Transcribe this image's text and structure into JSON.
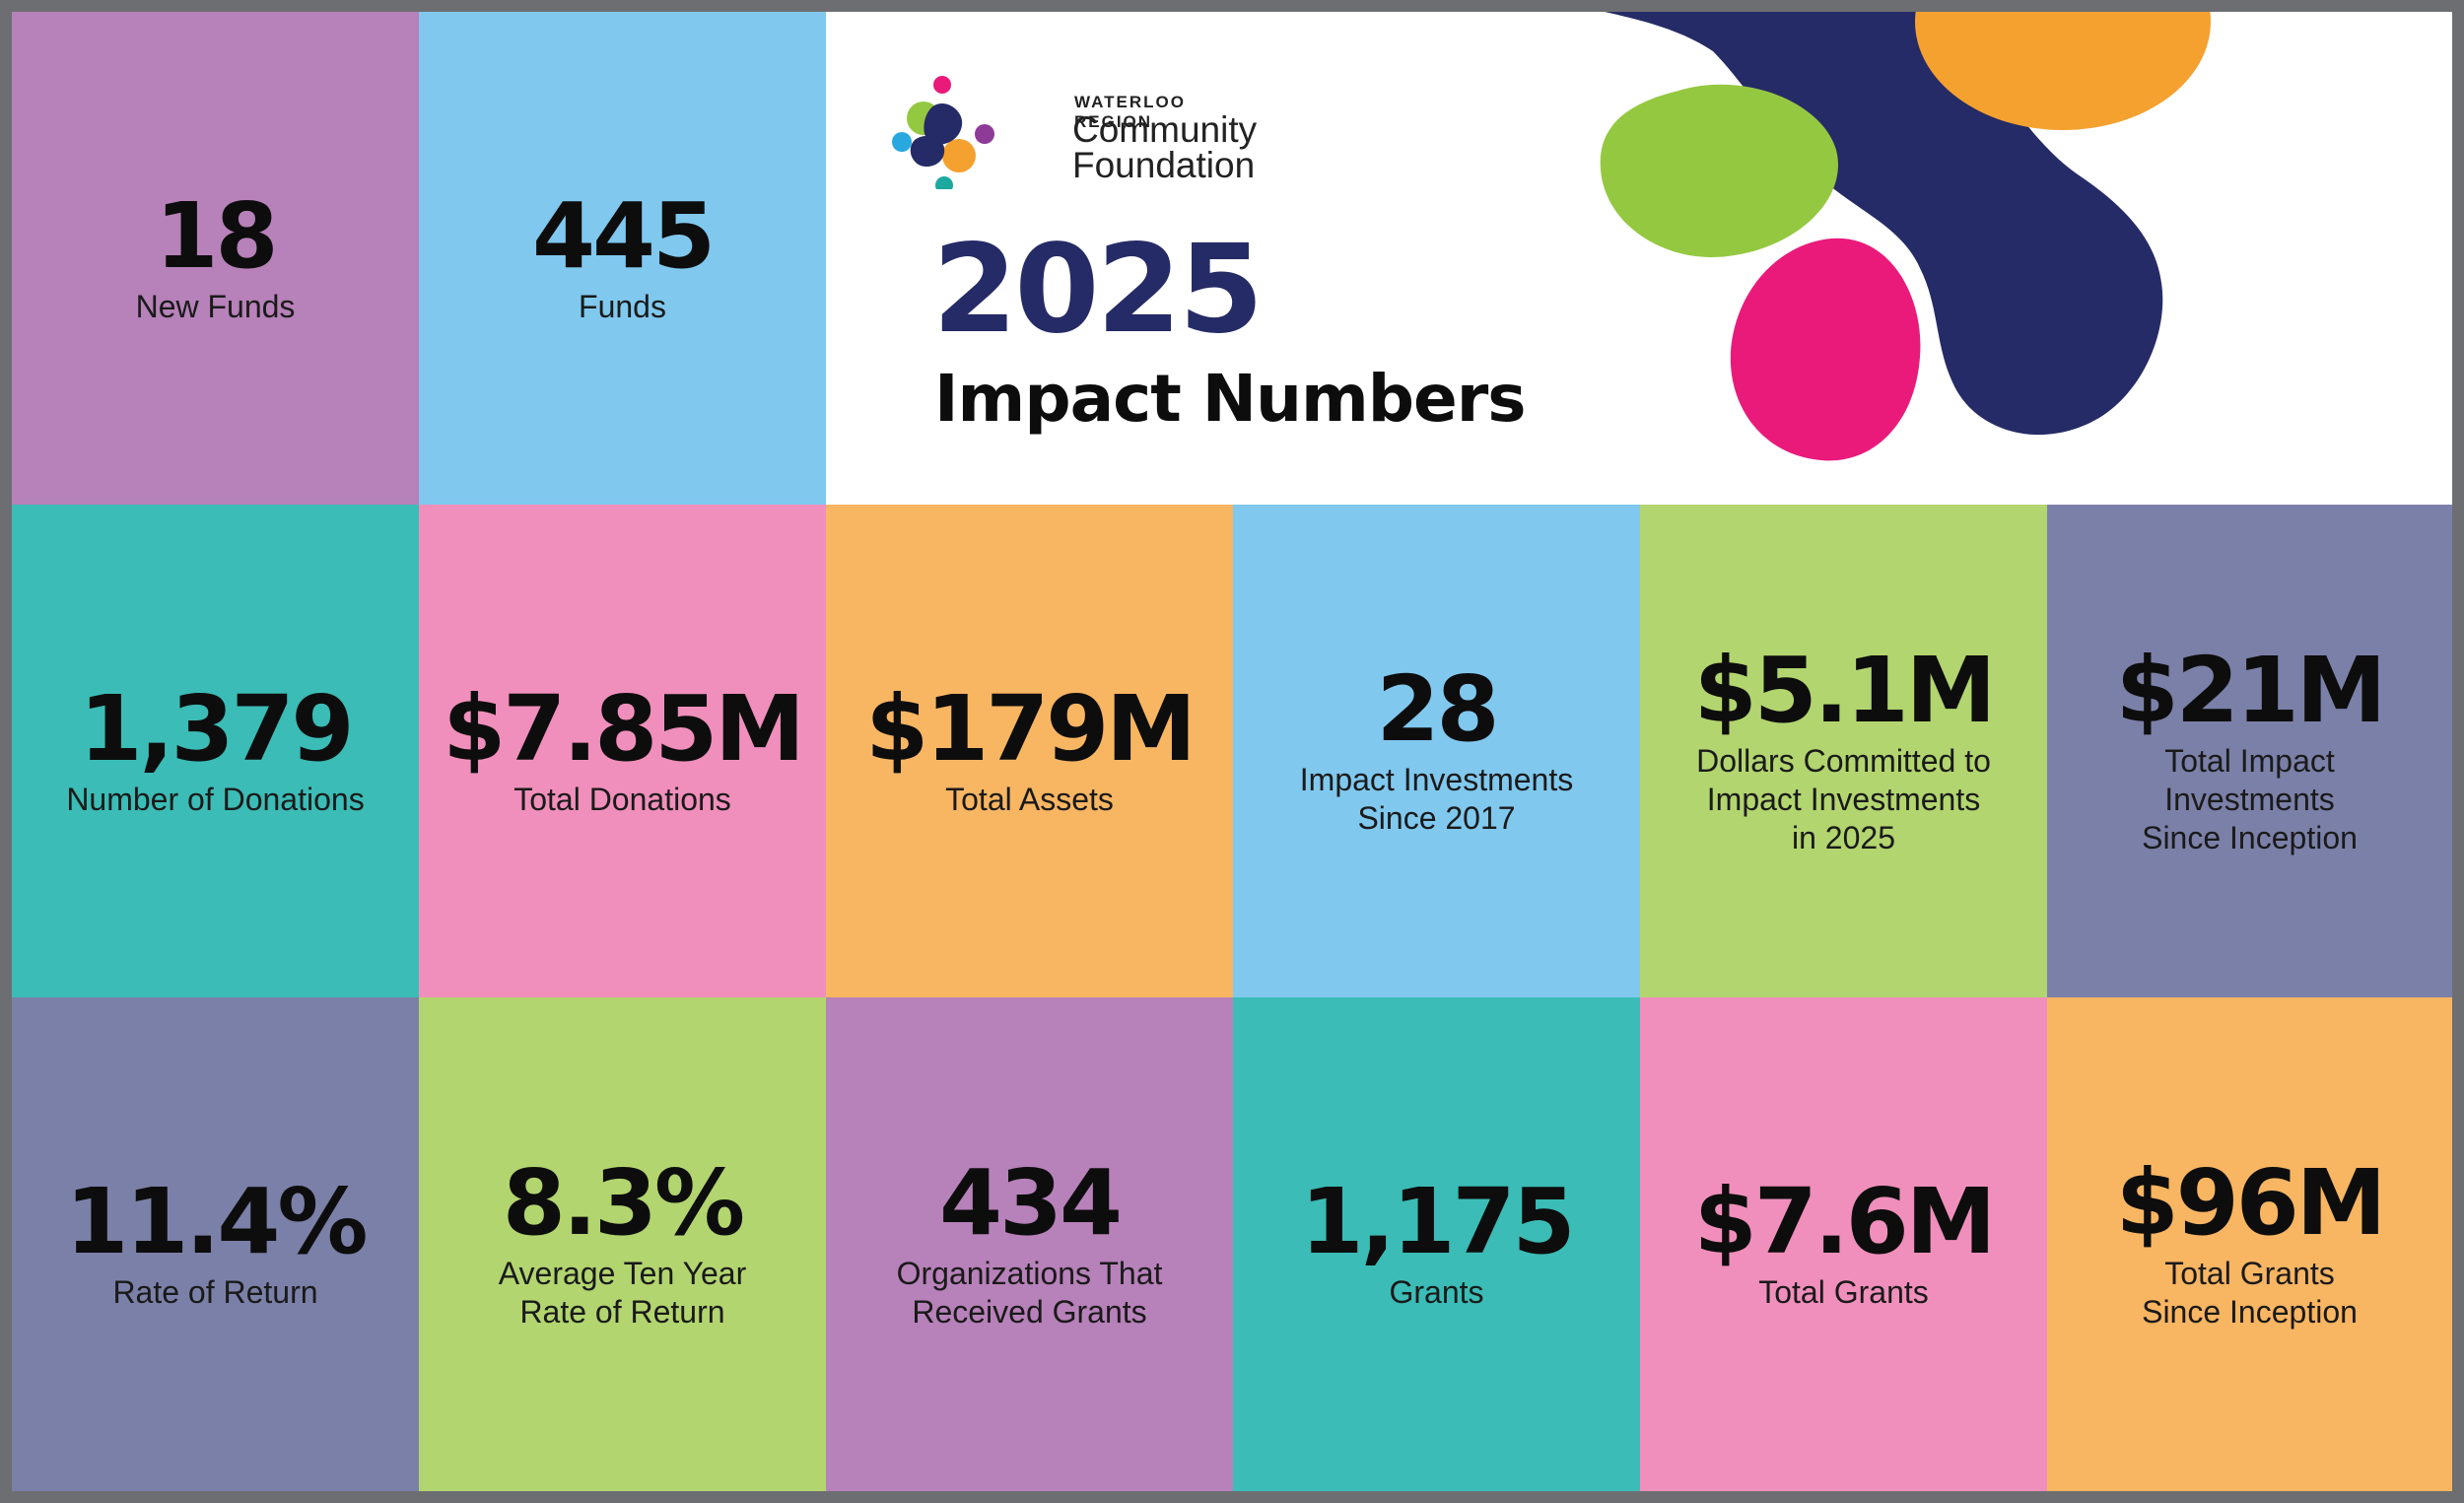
{
  "header": {
    "org_small": "WATERLOO REGION",
    "org_line1": "Community",
    "org_line2": "Foundation",
    "year": "2025",
    "title": "Impact Numbers"
  },
  "colors": {
    "purple": "#b781b9",
    "sky": "#80c8ee",
    "teal": "#3bbcb6",
    "pink": "#f08fbb",
    "orange": "#f8b562",
    "slate": "#7b80a8",
    "lime": "#b2d56f",
    "navy": "#252b66",
    "green_blob": "#95c841",
    "magenta_blob": "#ea1a7b",
    "orange_blob": "#f5a12f"
  },
  "stats": [
    {
      "value": "18",
      "label": [
        "New Funds"
      ]
    },
    {
      "value": "445",
      "label": [
        "Funds"
      ]
    },
    {
      "value": "1,379",
      "label": [
        "Number of Donations"
      ]
    },
    {
      "value": "$7.85M",
      "label": [
        "Total Donations"
      ]
    },
    {
      "value": "$179M",
      "label": [
        "Total Assets"
      ]
    },
    {
      "value": "28",
      "label": [
        "Impact Investments",
        "Since 2017"
      ]
    },
    {
      "value": "$5.1M",
      "label": [
        "Dollars Committed to",
        "Impact Investments",
        "in 2025"
      ]
    },
    {
      "value": "$21M",
      "label": [
        "Total Impact",
        "Investments",
        "Since Inception"
      ]
    },
    {
      "value": "11.4%",
      "label": [
        "Rate of Return"
      ]
    },
    {
      "value": "8.3%",
      "label": [
        "Average Ten Year",
        "Rate of Return"
      ]
    },
    {
      "value": "434",
      "label": [
        "Organizations That",
        "Received Grants"
      ]
    },
    {
      "value": "1,175",
      "label": [
        "Grants"
      ]
    },
    {
      "value": "$7.6M",
      "label": [
        "Total Grants"
      ]
    },
    {
      "value": "$96M",
      "label": [
        "Total Grants",
        "Since Inception"
      ]
    }
  ]
}
